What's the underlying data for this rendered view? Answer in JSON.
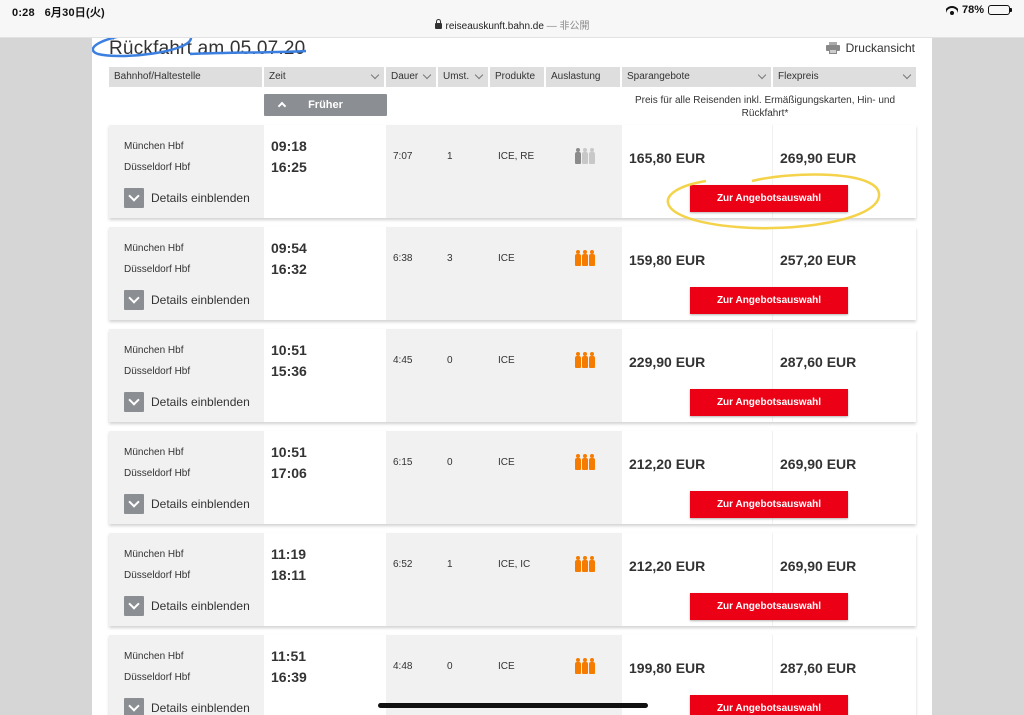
{
  "status_bar": {
    "time": "0:28",
    "date": "6月30日(火)",
    "url": "reiseauskunft.bahn.de",
    "private": "— 非公開",
    "battery": "78%",
    "battery_level": 0.78
  },
  "page": {
    "title": "Rückfahrt am 05.07.20",
    "print_label": "Druckansicht"
  },
  "columns": {
    "station": "Bahnhof/Haltestelle",
    "time": "Zeit",
    "duration": "Dauer",
    "changes": "Umst.",
    "products": "Produkte",
    "occupancy": "Auslastung",
    "saver": "Sparangebote",
    "flex": "Flexpreis"
  },
  "earlier_label": "Früher",
  "price_note": "Preis für alle Reisenden inkl. Ermäßigungskarten, Hin- und Rückfahrt*",
  "details_label": "Details einblenden",
  "offer_label": "Zur Angebotsauswahl",
  "colors": {
    "occupancy_high": "#f57c00",
    "occupancy_low": "#8b8b8b",
    "occupancy_none": "#c8c8c8",
    "button_red": "#ec0016",
    "annotation_blue": "#3b7fe0",
    "annotation_yellow": "#f4d34a"
  },
  "connections": [
    {
      "from": "München Hbf",
      "to": "Düsseldorf Hbf",
      "dep": "09:18",
      "arr": "16:25",
      "duration": "7:07",
      "changes": "1",
      "products": "ICE, RE",
      "occupancy": "low",
      "saver": "165,80 EUR",
      "flex": "269,90 EUR"
    },
    {
      "from": "München Hbf",
      "to": "Düsseldorf Hbf",
      "dep": "09:54",
      "arr": "16:32",
      "duration": "6:38",
      "changes": "3",
      "products": "ICE",
      "occupancy": "high",
      "saver": "159,80 EUR",
      "flex": "257,20 EUR"
    },
    {
      "from": "München Hbf",
      "to": "Düsseldorf Hbf",
      "dep": "10:51",
      "arr": "15:36",
      "duration": "4:45",
      "changes": "0",
      "products": "ICE",
      "occupancy": "high",
      "saver": "229,90 EUR",
      "flex": "287,60 EUR"
    },
    {
      "from": "München Hbf",
      "to": "Düsseldorf Hbf",
      "dep": "10:51",
      "arr": "17:06",
      "duration": "6:15",
      "changes": "0",
      "products": "ICE",
      "occupancy": "high",
      "saver": "212,20 EUR",
      "flex": "269,90 EUR"
    },
    {
      "from": "München Hbf",
      "to": "Düsseldorf Hbf",
      "dep": "11:19",
      "arr": "18:11",
      "duration": "6:52",
      "changes": "1",
      "products": "ICE, IC",
      "occupancy": "high",
      "saver": "212,20 EUR",
      "flex": "269,90 EUR"
    },
    {
      "from": "München Hbf",
      "to": "Düsseldorf Hbf",
      "dep": "11:51",
      "arr": "16:39",
      "duration": "4:48",
      "changes": "0",
      "products": "ICE",
      "occupancy": "high",
      "saver": "199,80 EUR",
      "flex": "287,60 EUR"
    }
  ]
}
